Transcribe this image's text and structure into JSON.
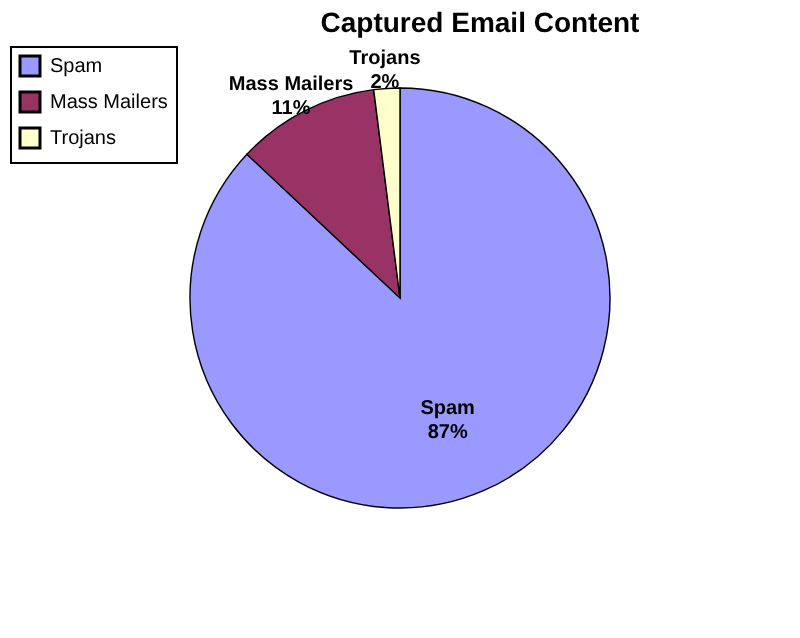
{
  "chart_data": {
    "type": "pie",
    "title": "Captured Email Content",
    "categories": [
      "Spam",
      "Mass Mailers",
      "Trojans"
    ],
    "values": [
      87,
      11,
      2
    ],
    "colors": [
      "#9999ff",
      "#993366",
      "#ffffcc"
    ],
    "value_labels": [
      "87%",
      "11%",
      "2%"
    ],
    "legend": "top left"
  }
}
